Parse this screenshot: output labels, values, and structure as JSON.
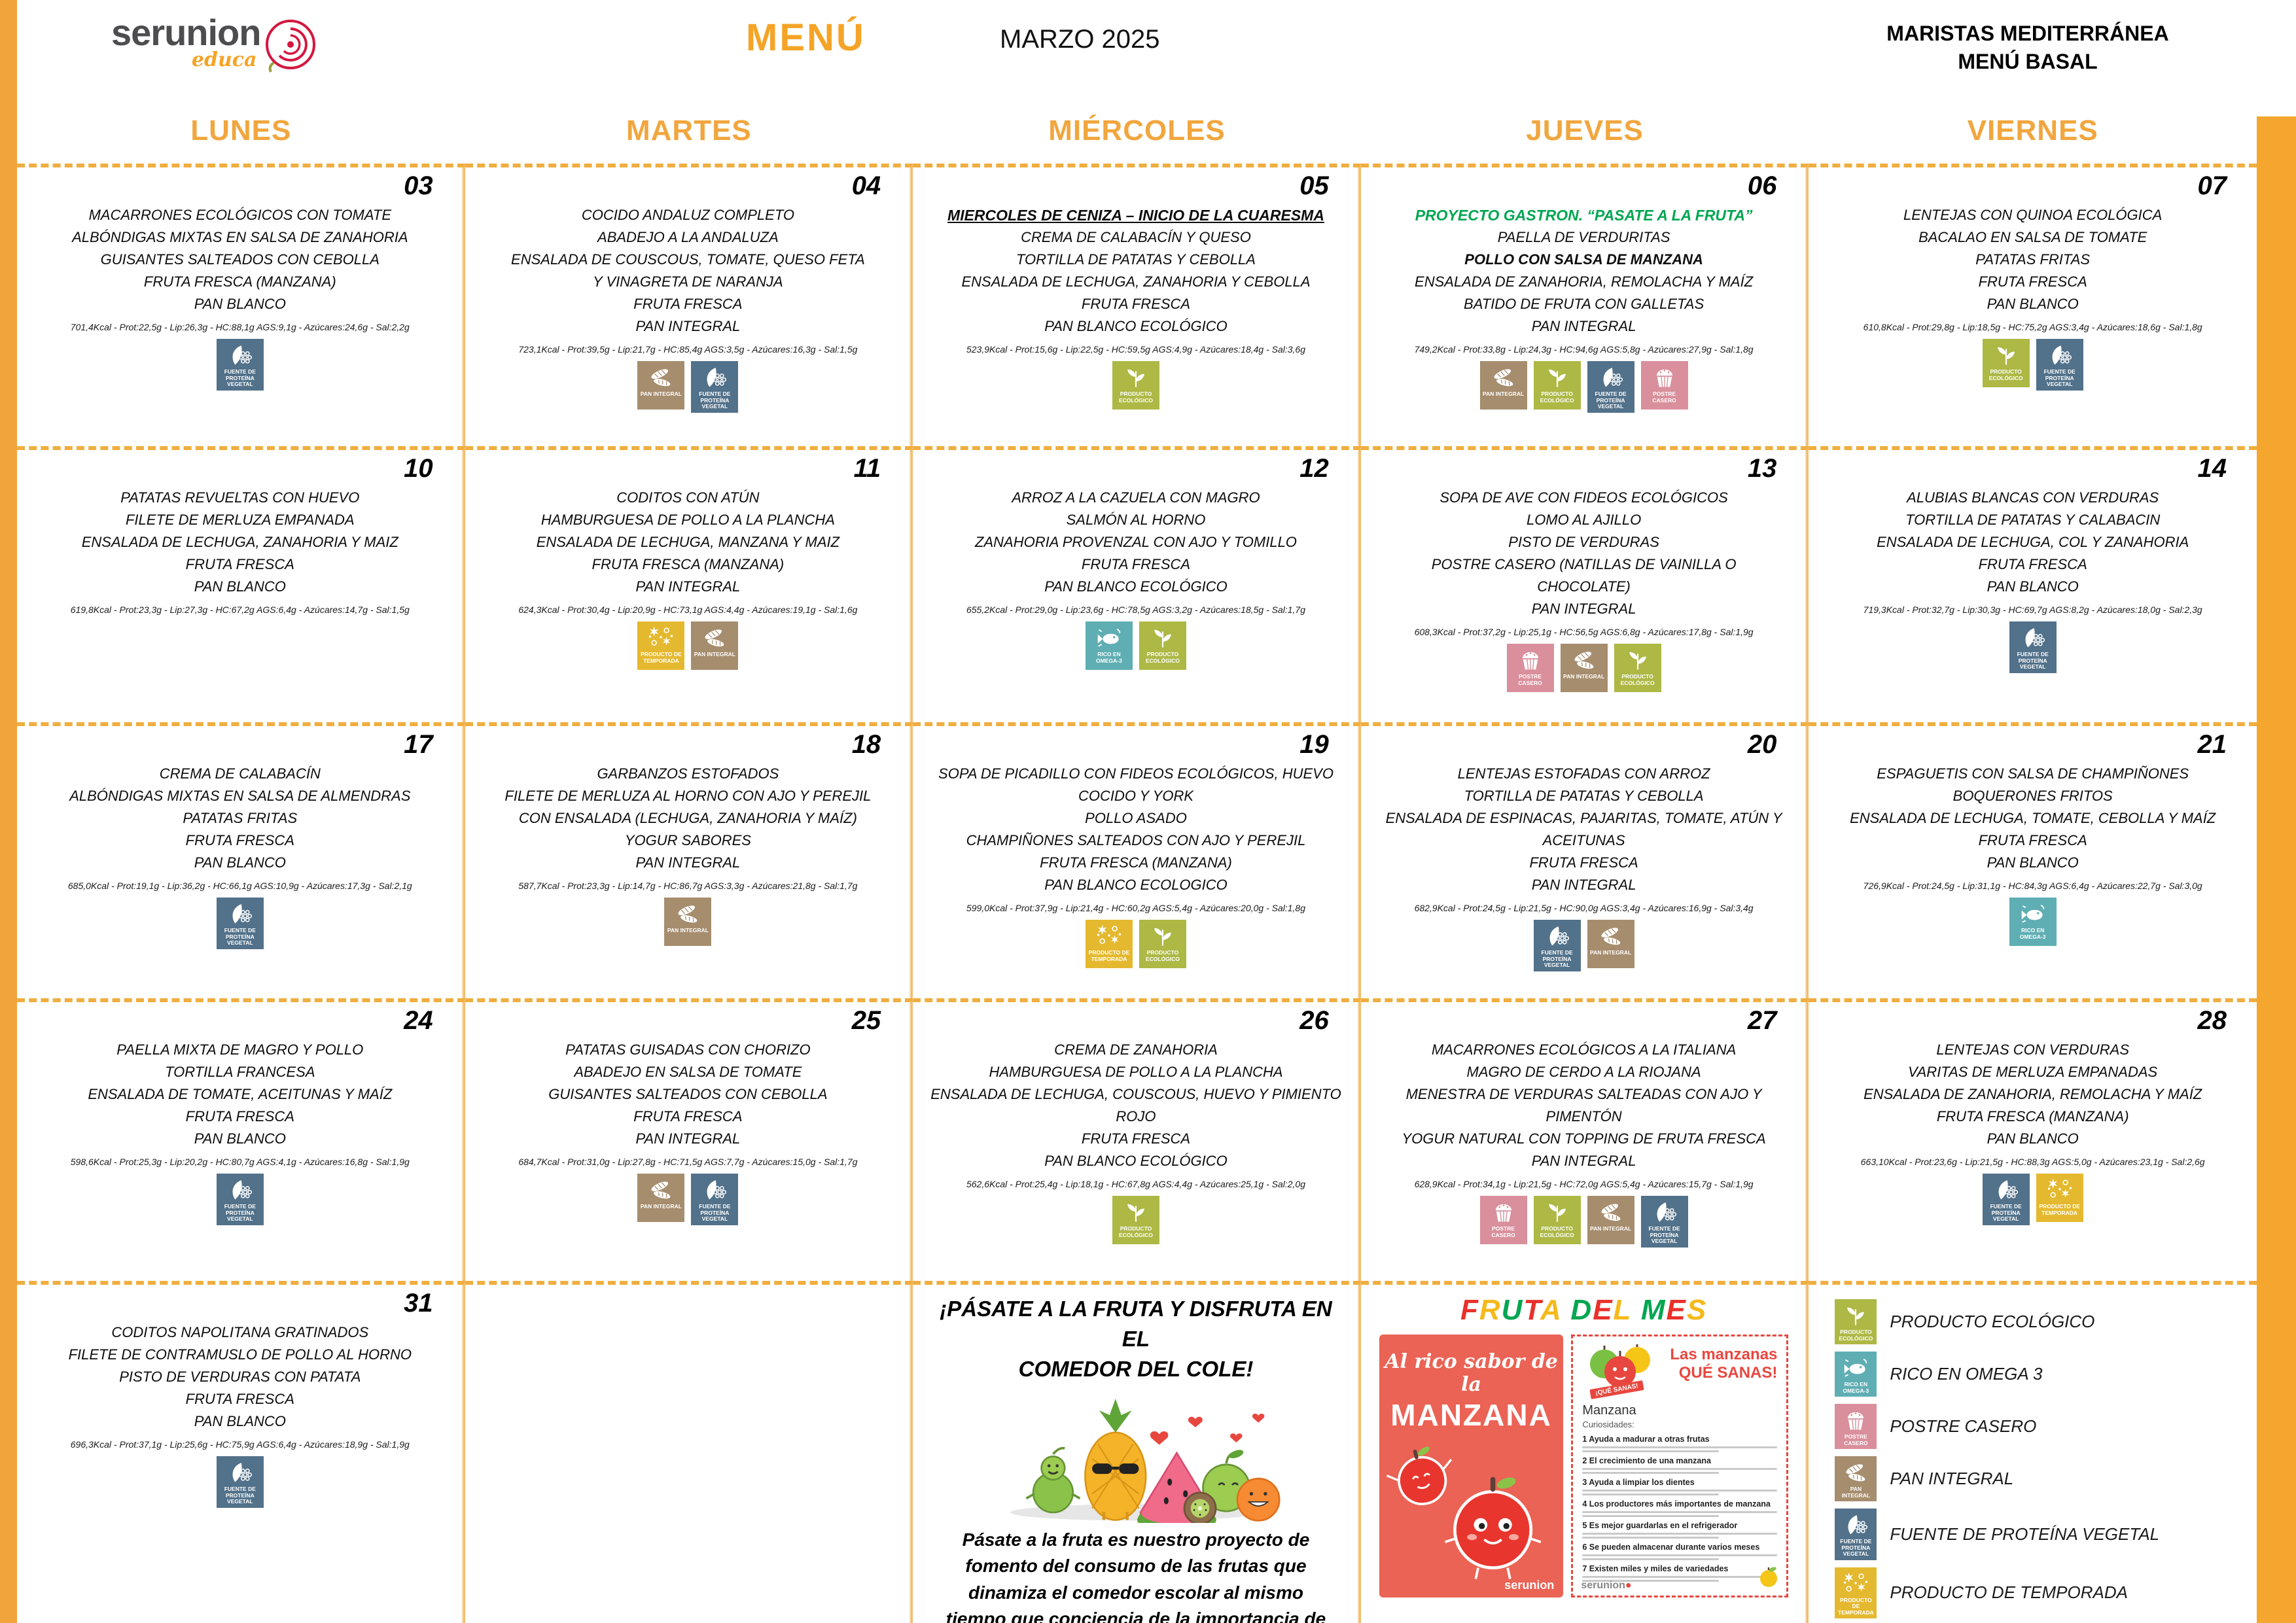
{
  "header": {
    "logo": {
      "brand": "serunion",
      "sub": "educa"
    },
    "menu_title": "MENÚ",
    "month": "MARZO 2025",
    "school_line1": "MARISTAS MEDITERRÁNEA",
    "school_line2": "MENÚ BASAL"
  },
  "weekdays": [
    "LUNES",
    "MARTES",
    "MIÉRCOLES",
    "JUEVES",
    "VIERNES"
  ],
  "icon_types": {
    "eco": {
      "label": "PRODUCTO ECOLÓGICO",
      "color": "#ADB845"
    },
    "omega": {
      "label": "RICO EN OMEGA-3",
      "color": "#5FAEB3"
    },
    "postre": {
      "label": "POSTRE CASERO",
      "color": "#D98F9C"
    },
    "pan": {
      "label": "PAN INTEGRAL",
      "color": "#A68D6E"
    },
    "veg": {
      "label": "FUENTE DE PROTEÍNA VEGETAL",
      "color": "#52718A"
    },
    "temporada": {
      "label": "PRODUCTO DE TEMPORADA",
      "color": "#E5B92F"
    }
  },
  "legend": [
    {
      "icon": "eco",
      "label": "PRODUCTO ECOLÓGICO"
    },
    {
      "icon": "omega",
      "label": "RICO EN OMEGA 3"
    },
    {
      "icon": "postre",
      "label": "POSTRE CASERO"
    },
    {
      "icon": "pan",
      "label": "PAN INTEGRAL"
    },
    {
      "icon": "veg",
      "label": "FUENTE DE PROTEÍNA VEGETAL"
    },
    {
      "icon": "temporada",
      "label": "PRODUCTO DE TEMPORADA"
    }
  ],
  "weeks": [
    [
      {
        "number": "03",
        "lines": [
          "MACARRONES ECOLÓGICOS CON TOMATE",
          "ALBÓNDIGAS MIXTAS EN SALSA DE ZANAHORIA",
          "GUISANTES SALTEADOS CON CEBOLLA",
          "FRUTA FRESCA (MANZANA)",
          "PAN BLANCO"
        ],
        "nutrition": "701,4Kcal - Prot:22,5g - Lip:26,3g - HC:88,1g AGS:9,1g - Azúcares:24,6g - Sal:2,2g",
        "icons": [
          "veg"
        ]
      },
      {
        "number": "04",
        "lines": [
          "COCIDO ANDALUZ COMPLETO",
          "ABADEJO A LA ANDALUZA",
          "ENSALADA DE COUSCOUS, TOMATE, QUESO FETA",
          "Y VINAGRETA DE NARANJA",
          "FRUTA FRESCA",
          "PAN INTEGRAL"
        ],
        "nutrition": "723,1Kcal - Prot:39,5g - Lip:21,7g - HC:85,4g AGS:3,5g - Azúcares:16,3g - Sal:1,5g",
        "icons": [
          "pan",
          "veg"
        ]
      },
      {
        "number": "05",
        "special": {
          "text": "MIERCOLES DE CENIZA – INICIO DE LA CUARESMA",
          "type": "underline"
        },
        "lines": [
          "CREMA DE CALABACÍN Y QUESO",
          "TORTILLA DE PATATAS Y CEBOLLA",
          "ENSALADA DE LECHUGA, ZANAHORIA Y CEBOLLA",
          "FRUTA FRESCA",
          "PAN BLANCO ECOLÓGICO"
        ],
        "nutrition": "523,9Kcal - Prot:15,6g - Lip:22,5g - HC:59,5g AGS:4,9g - Azúcares:18,4g - Sal:3,6g",
        "icons": [
          "eco"
        ]
      },
      {
        "number": "06",
        "special": {
          "text": "PROYECTO GASTRON.  “PASATE A LA FRUTA”",
          "type": "green"
        },
        "lines": [
          "PAELLA DE VERDURITAS",
          "POLLO CON SALSA DE MANZANA",
          "ENSALADA DE ZANAHORIA, REMOLACHA Y MAÍZ",
          "BATIDO DE FRUTA CON GALLETAS",
          "PAN INTEGRAL"
        ],
        "bold_lines": [
          1
        ],
        "nutrition": "749,2Kcal - Prot:33,8g - Lip:24,3g - HC:94,6g AGS:5,8g - Azúcares:27,9g - Sal:1,8g",
        "icons": [
          "pan",
          "eco",
          "veg",
          "postre"
        ]
      },
      {
        "number": "07",
        "lines": [
          "LENTEJAS CON QUINOA ECOLÓGICA",
          "BACALAO EN SALSA DE TOMATE",
          "PATATAS FRITAS",
          "FRUTA FRESCA",
          "PAN BLANCO"
        ],
        "nutrition": "610,8Kcal - Prot:29,8g - Lip:18,5g - HC:75,2g AGS:3,4g - Azúcares:18,6g - Sal:1,8g",
        "icons": [
          "eco",
          "veg"
        ]
      }
    ],
    [
      {
        "number": "10",
        "lines": [
          "PATATAS REVUELTAS CON HUEVO",
          "FILETE DE MERLUZA EMPANADA",
          "ENSALADA DE LECHUGA, ZANAHORIA Y MAIZ",
          "FRUTA FRESCA",
          "PAN BLANCO"
        ],
        "nutrition": "619,8Kcal - Prot:23,3g - Lip:27,3g - HC:67,2g AGS:6,4g - Azúcares:14,7g - Sal:1,5g",
        "icons": []
      },
      {
        "number": "11",
        "lines": [
          "CODITOS CON ATÚN",
          "HAMBURGUESA DE POLLO A LA PLANCHA",
          "ENSALADA DE LECHUGA, MANZANA Y MAIZ",
          "FRUTA FRESCA (MANZANA)",
          "PAN INTEGRAL"
        ],
        "nutrition": "624,3Kcal - Prot:30,4g - Lip:20,9g - HC:73,1g AGS:4,4g - Azúcares:19,1g - Sal:1,6g",
        "icons": [
          "temporada",
          "pan"
        ]
      },
      {
        "number": "12",
        "lines": [
          "ARROZ A LA CAZUELA CON MAGRO",
          "SALMÓN AL HORNO",
          "ZANAHORIA PROVENZAL CON AJO Y TOMILLO",
          "FRUTA FRESCA",
          "PAN BLANCO ECOLÓGICO"
        ],
        "nutrition": "655,2Kcal - Prot:29,0g - Lip:23,6g - HC:78,5g AGS:3,2g - Azúcares:18,5g - Sal:1,7g",
        "icons": [
          "omega",
          "eco"
        ]
      },
      {
        "number": "13",
        "lines": [
          "SOPA DE AVE CON FIDEOS ECOLÓGICOS",
          "LOMO AL AJILLO",
          "PISTO DE VERDURAS",
          "POSTRE CASERO (NATILLAS DE VAINILLA O",
          "CHOCOLATE)",
          "PAN INTEGRAL"
        ],
        "nutrition": "608,3Kcal - Prot:37,2g - Lip:25,1g - HC:56,5g AGS:6,8g - Azúcares:17,8g - Sal:1,9g",
        "icons": [
          "postre",
          "pan",
          "eco"
        ]
      },
      {
        "number": "14",
        "lines": [
          "ALUBIAS BLANCAS CON VERDURAS",
          "TORTILLA DE PATATAS Y CALABACIN",
          "ENSALADA DE LECHUGA, COL Y ZANAHORIA",
          "FRUTA FRESCA",
          "PAN BLANCO"
        ],
        "nutrition": "719,3Kcal - Prot:32,7g - Lip:30,3g - HC:69,7g AGS:8,2g - Azúcares:18,0g - Sal:2,3g",
        "icons": [
          "veg"
        ]
      }
    ],
    [
      {
        "number": "17",
        "lines": [
          "CREMA DE CALABACÍN",
          "ALBÓNDIGAS MIXTAS EN SALSA DE ALMENDRAS",
          "PATATAS FRITAS",
          "FRUTA FRESCA",
          "PAN BLANCO"
        ],
        "nutrition": "685,0Kcal - Prot:19,1g - Lip:36,2g - HC:66,1g AGS:10,9g - Azúcares:17,3g - Sal:2,1g",
        "icons": [
          "veg"
        ]
      },
      {
        "number": "18",
        "lines": [
          "GARBANZOS ESTOFADOS",
          "FILETE DE MERLUZA AL HORNO CON AJO Y PEREJIL",
          "CON ENSALADA (LECHUGA, ZANAHORIA Y MAÍZ)",
          "YOGUR SABORES",
          "PAN INTEGRAL"
        ],
        "nutrition": "587,7Kcal - Prot:23,3g - Lip:14,7g - HC:86,7g AGS:3,3g - Azúcares:21,8g - Sal:1,7g",
        "icons": [
          "pan"
        ]
      },
      {
        "number": "19",
        "lines": [
          "SOPA DE PICADILLO CON FIDEOS ECOLÓGICOS, HUEVO COCIDO Y YORK",
          "POLLO ASADO",
          "CHAMPIÑONES SALTEADOS CON AJO Y PEREJIL",
          "FRUTA FRESCA (MANZANA)",
          "PAN BLANCO ECOLOGICO"
        ],
        "nutrition": "599,0Kcal - Prot:37,9g - Lip:21,4g - HC:60,2g AGS:5,4g - Azúcares:20,0g - Sal:1,8g",
        "icons": [
          "temporada",
          "eco"
        ]
      },
      {
        "number": "20",
        "lines": [
          "LENTEJAS ESTOFADAS CON ARROZ",
          "TORTILLA DE PATATAS Y CEBOLLA",
          "ENSALADA DE ESPINACAS, PAJARITAS, TOMATE, ATÚN Y ACEITUNAS",
          "FRUTA FRESCA",
          "PAN INTEGRAL"
        ],
        "nutrition": "682,9Kcal - Prot:24,5g - Lip:21,5g - HC:90,0g AGS:3,4g - Azúcares:16,9g - Sal:3,4g",
        "icons": [
          "veg",
          "pan"
        ]
      },
      {
        "number": "21",
        "lines": [
          "ESPAGUETIS CON SALSA DE CHAMPIÑONES",
          "BOQUERONES FRITOS",
          "ENSALADA DE LECHUGA, TOMATE, CEBOLLA Y MAÍZ",
          "FRUTA FRESCA",
          "PAN BLANCO"
        ],
        "nutrition": "726,9Kcal - Prot:24,5g - Lip:31,1g - HC:84,3g AGS:6,4g - Azúcares:22,7g - Sal:3,0g",
        "icons": [
          "omega"
        ]
      }
    ],
    [
      {
        "number": "24",
        "lines": [
          "PAELLA MIXTA DE MAGRO Y POLLO",
          "TORTILLA FRANCESA",
          "ENSALADA DE TOMATE, ACEITUNAS Y MAÍZ",
          "FRUTA FRESCA",
          "PAN BLANCO"
        ],
        "nutrition": "598,6Kcal - Prot:25,3g - Lip:20,2g - HC:80,7g AGS:4,1g - Azúcares:16,8g - Sal:1,9g",
        "icons": [
          "veg"
        ]
      },
      {
        "number": "25",
        "lines": [
          "PATATAS GUISADAS CON CHORIZO",
          "ABADEJO EN SALSA DE TOMATE",
          "GUISANTES SALTEADOS CON CEBOLLA",
          "FRUTA FRESCA",
          "PAN INTEGRAL"
        ],
        "nutrition": "684,7Kcal - Prot:31,0g - Lip:27,8g - HC:71,5g AGS:7,7g - Azúcares:15,0g - Sal:1,7g",
        "icons": [
          "pan",
          "veg"
        ]
      },
      {
        "number": "26",
        "lines": [
          "CREMA DE ZANAHORIA",
          "HAMBURGUESA DE POLLO A LA PLANCHA",
          "ENSALADA DE LECHUGA, COUSCOUS, HUEVO Y PIMIENTO ROJO",
          "FRUTA FRESCA",
          "PAN BLANCO ECOLÓGICO"
        ],
        "nutrition": "562,6Kcal - Prot:25,4g - Lip:18,1g - HC:67,8g AGS:4,4g - Azúcares:25,1g - Sal:2,0g",
        "icons": [
          "eco"
        ]
      },
      {
        "number": "27",
        "lines": [
          "MACARRONES ECOLÓGICOS A LA ITALIANA",
          "MAGRO DE CERDO A LA RIOJANA",
          "MENESTRA DE VERDURAS SALTEADAS CON AJO Y PIMENTÓN",
          "YOGUR NATURAL CON TOPPING DE FRUTA FRESCA",
          "PAN INTEGRAL"
        ],
        "nutrition": "628,9Kcal - Prot:34,1g - Lip:21,5g - HC:72,0g AGS:5,4g - Azúcares:15,7g - Sal:1,9g",
        "icons": [
          "postre",
          "eco",
          "pan",
          "veg"
        ]
      },
      {
        "number": "28",
        "lines": [
          "LENTEJAS CON VERDURAS",
          "VARITAS DE MERLUZA EMPANADAS",
          "ENSALADA DE ZANAHORIA, REMOLACHA Y MAÍZ",
          "FRUTA FRESCA (MANZANA)",
          "PAN BLANCO"
        ],
        "nutrition": "663,10Kcal - Prot:23,6g - Lip:21,5g - HC:88,3g AGS:5,0g - Azúcares:23,1g - Sal:2,6g",
        "icons": [
          "veg",
          "temporada"
        ]
      }
    ]
  ],
  "week5_day": {
    "number": "31",
    "lines": [
      "CODITOS NAPOLITANA GRATINADOS",
      "FILETE DE CONTRAMUSLO DE POLLO AL HORNO",
      "PISTO DE VERDURAS CON PATATA",
      "FRUTA FRESCA",
      "PAN BLANCO"
    ],
    "nutrition": "696,3Kcal - Prot:37,1g - Lip:25,6g - HC:75,9g AGS:6,4g - Azúcares:18,9g - Sal:1,9g",
    "icons": [
      "veg"
    ]
  },
  "promo": {
    "title_line1": "¡PÁSATE A LA FRUTA Y DISFRUTA EN EL",
    "title_line2": "COMEDOR DEL COLE!",
    "paragraph": "Pásate a la fruta es nuestro proyecto de fomento del consumo de las frutas que dinamiza el comedor escolar al mismo tiempo que conciencia de la importancia de una alimentación sana y variada."
  },
  "fruta_del_mes": {
    "title": "FRUTA DEL MES",
    "title_colors": [
      "#E8312A",
      "#F5B91B",
      "#00A651"
    ],
    "red_poster": {
      "line1": "Al rico sabor de la",
      "line2": "MANZANA",
      "brand": "serunion"
    },
    "white_poster": {
      "title1": "Las manzanas",
      "title2": "QUÉ SANAS!",
      "banner": "¡QUÉ SANAS!",
      "heading": "Manzana",
      "subheading": "Curiosidades:",
      "curiosities": [
        "1 Ayuda a madurar a otras frutas",
        "2 El crecimiento de una manzana",
        "3 Ayuda a limpiar los dientes",
        "4 Los productores más importantes de manzana",
        "5 Es mejor guardarlas en el refrigerador",
        "6 Se pueden almacenar durante varios meses",
        "7 Existen miles y miles de variedades"
      ],
      "brand": "serunion"
    }
  }
}
